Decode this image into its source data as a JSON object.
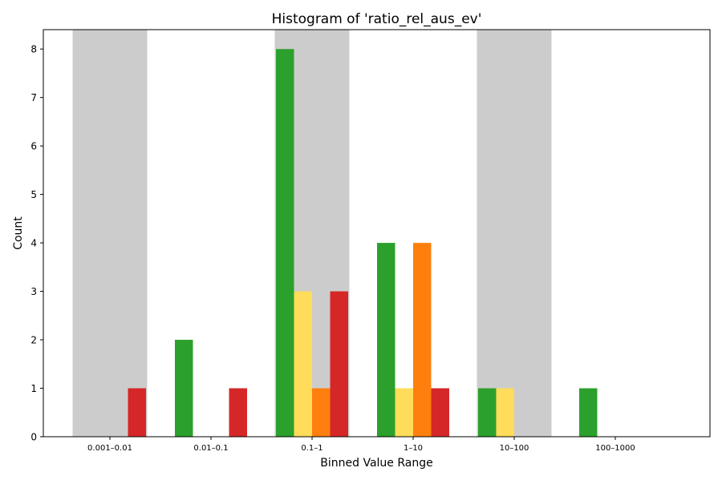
{
  "chart_data": {
    "type": "bar",
    "title": "Histogram of 'ratio_rel_aus_ev'",
    "xlabel": "Binned Value Range",
    "ylabel": "Count",
    "categories": [
      "0.001–0.01",
      "0.01–0.1",
      "0.1–1",
      "1–10",
      "10–100",
      "100–1000"
    ],
    "ylim": [
      0,
      8.4
    ],
    "yticks": [
      "0",
      "1",
      "2",
      "3",
      "4",
      "5",
      "6",
      "7",
      "8"
    ],
    "grid": false,
    "legend": "none",
    "shaded_categories": [
      0,
      2,
      4
    ],
    "shade_color": "#cccccc",
    "series": [
      {
        "color": "#2ca02c",
        "values": [
          0,
          2,
          8,
          4,
          1,
          1
        ]
      },
      {
        "color": "#ffdc5a",
        "values": [
          0,
          0,
          3,
          1,
          1,
          0
        ]
      },
      {
        "color": "#ff7f0e",
        "values": [
          0,
          0,
          1,
          4,
          0,
          0
        ]
      },
      {
        "color": "#d62728",
        "values": [
          1,
          1,
          3,
          1,
          0,
          0
        ]
      }
    ]
  }
}
